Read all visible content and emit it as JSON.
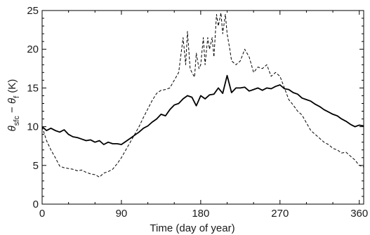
{
  "chart_data": {
    "type": "line",
    "xlabel": "Time (day of year)",
    "ylabel": {
      "theta": "θ",
      "sub1": "sfc",
      "minus": " − ",
      "sub2": "f",
      "unit": " (K)"
    },
    "xlim": [
      0,
      365
    ],
    "ylim": [
      0,
      25
    ],
    "xticks": [
      0,
      90,
      180,
      270,
      360
    ],
    "yticks": [
      0,
      5,
      10,
      15,
      20,
      25
    ],
    "grid": false,
    "legend": "none",
    "series": [
      {
        "style": "solid",
        "color": "#000000",
        "x": [
          0,
          5,
          10,
          15,
          20,
          25,
          30,
          35,
          40,
          45,
          50,
          55,
          60,
          65,
          70,
          75,
          80,
          85,
          90,
          95,
          100,
          105,
          110,
          115,
          120,
          125,
          130,
          135,
          140,
          145,
          150,
          155,
          160,
          165,
          170,
          175,
          180,
          185,
          190,
          195,
          200,
          205,
          210,
          215,
          220,
          225,
          230,
          235,
          240,
          245,
          250,
          255,
          260,
          265,
          270,
          275,
          280,
          285,
          290,
          295,
          300,
          305,
          310,
          315,
          320,
          325,
          330,
          335,
          340,
          345,
          350,
          355,
          360,
          365
        ],
        "y": [
          10.0,
          9.5,
          9.8,
          9.5,
          9.3,
          9.6,
          9.0,
          8.7,
          8.6,
          8.4,
          8.2,
          8.3,
          8.0,
          8.2,
          7.7,
          8.0,
          7.8,
          7.8,
          7.7,
          8.1,
          8.5,
          8.9,
          9.3,
          9.8,
          10.1,
          10.6,
          11.0,
          11.6,
          11.4,
          12.2,
          12.8,
          13.0,
          13.6,
          14.0,
          13.8,
          12.7,
          14.0,
          13.6,
          14.1,
          14.2,
          15.0,
          14.3,
          16.6,
          14.4,
          15.0,
          15.0,
          15.1,
          14.6,
          14.8,
          15.0,
          14.7,
          15.0,
          14.9,
          15.2,
          15.4,
          14.9,
          14.8,
          14.4,
          14.2,
          13.7,
          13.5,
          13.3,
          12.9,
          12.6,
          12.2,
          11.9,
          11.6,
          11.4,
          11.0,
          10.7,
          10.3,
          10.0,
          10.2,
          10.1
        ]
      },
      {
        "style": "dashed",
        "color": "#000000",
        "x": [
          0,
          5,
          10,
          15,
          20,
          25,
          30,
          35,
          40,
          45,
          50,
          55,
          60,
          65,
          70,
          75,
          80,
          85,
          90,
          95,
          100,
          105,
          110,
          115,
          120,
          125,
          130,
          135,
          140,
          145,
          150,
          155,
          160,
          163,
          165,
          168,
          170,
          173,
          175,
          178,
          180,
          183,
          185,
          188,
          190,
          193,
          195,
          198,
          200,
          203,
          205,
          208,
          210,
          213,
          215,
          220,
          225,
          230,
          235,
          240,
          245,
          250,
          255,
          260,
          265,
          270,
          275,
          280,
          285,
          290,
          295,
          300,
          305,
          310,
          315,
          320,
          325,
          330,
          335,
          340,
          345,
          350,
          355,
          360,
          365
        ],
        "y": [
          10.0,
          8.2,
          7.0,
          6.0,
          4.9,
          4.7,
          4.6,
          4.5,
          4.3,
          4.4,
          4.1,
          3.9,
          3.8,
          3.5,
          4.0,
          4.2,
          4.5,
          5.2,
          6.0,
          7.0,
          8.0,
          9.0,
          10.0,
          11.2,
          12.3,
          13.4,
          14.3,
          14.7,
          14.8,
          15.0,
          16.0,
          17.0,
          21.5,
          18.0,
          22.3,
          17.5,
          17.0,
          16.4,
          19.5,
          17.5,
          18.0,
          21.5,
          18.0,
          21.5,
          20.0,
          21.5,
          19.0,
          24.5,
          23.0,
          24.7,
          22.0,
          24.5,
          22.0,
          20.0,
          18.5,
          18.0,
          18.5,
          20.0,
          19.0,
          17.0,
          17.7,
          17.5,
          18.0,
          16.5,
          17.0,
          16.5,
          15.0,
          13.5,
          12.8,
          12.0,
          11.5,
          10.5,
          9.5,
          9.0,
          8.5,
          8.0,
          7.7,
          7.2,
          7.0,
          6.6,
          6.7,
          6.2,
          5.7,
          5.0,
          4.8
        ]
      }
    ]
  }
}
